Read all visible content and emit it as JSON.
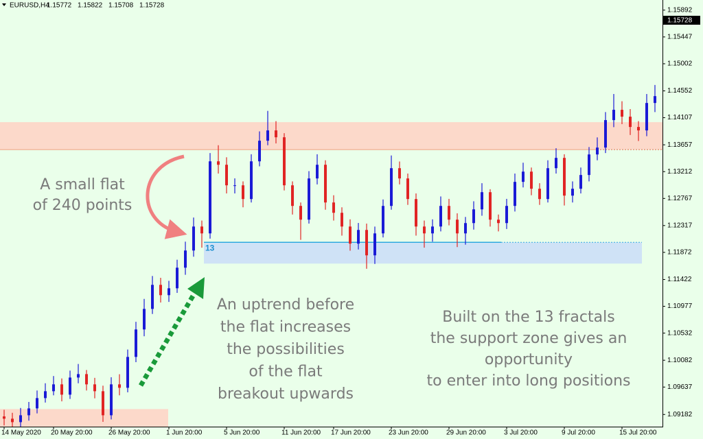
{
  "header": {
    "symbol": "EURUSD,H4",
    "ohlc": [
      1.15772,
      1.15822,
      1.15708,
      1.15728
    ]
  },
  "chart_data": {
    "type": "candlestick",
    "categories": [
      "14 May 2020",
      null,
      null,
      null,
      null,
      null,
      "20 May 20:00",
      null,
      null,
      null,
      null,
      null,
      null,
      "26 May 20:00",
      null,
      null,
      null,
      null,
      null,
      null,
      "1 Jun 20:00",
      null,
      null,
      null,
      null,
      null,
      null,
      "5 Jun 20:00",
      null,
      null,
      null,
      null,
      null,
      null,
      "11 Jun 20:00",
      null,
      null,
      null,
      null,
      null,
      "17 Jun 20:00",
      null,
      null,
      null,
      null,
      null,
      null,
      "23 Jun 20:00",
      null,
      null,
      null,
      null,
      null,
      null,
      "29 Jun 20:00",
      null,
      null,
      null,
      null,
      null,
      null,
      "3 Jul 20:00",
      null,
      null,
      null,
      null,
      null,
      null,
      "9 Jul 20:00",
      null,
      null,
      null,
      null,
      null,
      null,
      "15 Jul 20:00",
      null,
      null,
      null,
      null
    ],
    "open": [
      1.0915,
      1.09112,
      1.09055,
      1.09169,
      1.09283,
      1.09454,
      1.09568,
      1.09682,
      1.09511,
      1.09795,
      1.09852,
      1.09682,
      1.09568,
      1.09169,
      1.09682,
      1.09625,
      1.10137,
      1.10593,
      1.10934,
      1.11333,
      1.11162,
      1.11276,
      1.11618,
      1.11903,
      1.12301,
      1.12187,
      1.13383,
      1.13326,
      1.12985,
      1.12985,
      1.12757,
      1.13383,
      1.13725,
      1.13896,
      1.13782,
      1.12985,
      1.12643,
      1.12415,
      1.13099,
      1.13326,
      1.127,
      1.12529,
      1.12301,
      1.12017,
      1.12244,
      1.11823,
      1.12187,
      1.12643,
      1.13269,
      1.13099,
      1.12757,
      1.12301,
      1.12187,
      1.12301,
      1.12643,
      1.12415,
      1.12187,
      1.12358,
      1.12586,
      1.12871,
      1.12415,
      1.12358,
      1.12643,
      1.13042,
      1.13212,
      1.12928,
      1.12757,
      1.13269,
      1.1344,
      1.12814,
      1.12928,
      1.13156,
      1.13497,
      1.13611,
      1.14067,
      1.14238,
      1.14124,
      1.13953,
      1.13896,
      1.14351
    ],
    "high": [
      1.0926,
      1.0921,
      1.0929,
      1.0939,
      1.0958,
      1.097,
      1.0982,
      1.0978,
      1.0991,
      1.1002,
      1.0992,
      1.0979,
      1.0966,
      1.098,
      1.0985,
      1.1026,
      1.1072,
      1.111,
      1.1148,
      1.1145,
      1.114,
      1.1175,
      1.1205,
      1.1245,
      1.124,
      1.1352,
      1.1365,
      1.1345,
      1.131,
      1.1305,
      1.135,
      1.1388,
      1.1422,
      1.1405,
      1.1385,
      1.1305,
      1.127,
      1.1322,
      1.135,
      1.134,
      1.1282,
      1.1262,
      1.1242,
      1.1236,
      1.1235,
      1.123,
      1.1275,
      1.1348,
      1.1338,
      1.1318,
      1.1285,
      1.124,
      1.1242,
      1.128,
      1.1276,
      1.1252,
      1.1246,
      1.1272,
      1.1302,
      1.1292,
      1.125,
      1.1276,
      1.1318,
      1.1336,
      1.1328,
      1.1302,
      1.134,
      1.136,
      1.135,
      1.1305,
      1.1328,
      1.1362,
      1.1378,
      1.142,
      1.145,
      1.1438,
      1.1425,
      1.1405,
      1.145,
      1.1465
    ],
    "low": [
      1.09,
      1.0896,
      1.0898,
      1.0908,
      1.092,
      1.0938,
      1.095,
      1.094,
      1.0944,
      1.097,
      1.0958,
      1.0945,
      1.0906,
      1.091,
      1.095,
      1.0955,
      1.1005,
      1.1048,
      1.1085,
      1.1104,
      1.1105,
      1.112,
      1.115,
      1.118,
      1.1195,
      1.121,
      1.1318,
      1.1285,
      1.1285,
      1.1262,
      1.127,
      1.133,
      1.1365,
      1.1368,
      1.129,
      1.125,
      1.1208,
      1.1235,
      1.13,
      1.1258,
      1.124,
      1.1215,
      1.119,
      1.1192,
      1.116,
      1.1168,
      1.1212,
      1.1258,
      1.13,
      1.1266,
      1.1215,
      1.1195,
      1.1205,
      1.1222,
      1.1232,
      1.1196,
      1.12,
      1.1225,
      1.1248,
      1.123,
      1.1222,
      1.1226,
      1.1255,
      1.1295,
      1.1282,
      1.1266,
      1.127,
      1.1318,
      1.1265,
      1.127,
      1.1285,
      1.1305,
      1.134,
      1.1352,
      1.1395,
      1.14,
      1.1382,
      1.1372,
      1.138,
      1.142
    ],
    "close": [
      1.09112,
      1.09055,
      1.09169,
      1.09283,
      1.09454,
      1.09568,
      1.09682,
      1.09511,
      1.09795,
      1.09852,
      1.09682,
      1.09568,
      1.09169,
      1.09682,
      1.09625,
      1.10137,
      1.10593,
      1.10934,
      1.11333,
      1.11162,
      1.11276,
      1.11618,
      1.11903,
      1.12301,
      1.12187,
      1.13383,
      1.13326,
      1.12985,
      1.12985,
      1.12757,
      1.13383,
      1.13725,
      1.13896,
      1.13782,
      1.12985,
      1.12643,
      1.12415,
      1.13099,
      1.13326,
      1.127,
      1.12529,
      1.12301,
      1.12017,
      1.12244,
      1.11823,
      1.12187,
      1.12643,
      1.13269,
      1.13099,
      1.12757,
      1.12301,
      1.12187,
      1.12301,
      1.12643,
      1.12415,
      1.12187,
      1.12358,
      1.12586,
      1.12871,
      1.12415,
      1.12358,
      1.12643,
      1.13042,
      1.13212,
      1.12928,
      1.12757,
      1.13269,
      1.1344,
      1.12814,
      1.12928,
      1.13156,
      1.13497,
      1.13611,
      1.14067,
      1.14238,
      1.14124,
      1.13953,
      1.13896,
      1.14351,
      1.14465
    ],
    "up_color": "#1a1ad6",
    "down_color": "#e02424",
    "ylim": [
      1.0898,
      1.1606
    ],
    "yticks": [
      1.15892,
      1.15447,
      1.15002,
      1.14552,
      1.14107,
      1.13657,
      1.13212,
      1.12767,
      1.12317,
      1.11872,
      1.11422,
      1.10977,
      1.10532,
      1.10082,
      1.09637,
      1.09182
    ],
    "grid": false,
    "zones": [
      {
        "from": 1.13577,
        "to": 1.14033,
        "color": "#fcd9ca"
      },
      {
        "from": 1.11686,
        "to": 1.12039,
        "color": "#cfe2f6"
      },
      {
        "from": 1.0898,
        "to": 1.09272,
        "color": "#fcd9ca"
      }
    ],
    "zone_label": "13",
    "annotations": [
      [
        "A small flat",
        "of 240 points"
      ],
      [
        "An uptrend before",
        "the flat increases",
        "the possibilities",
        "of the flat",
        "breakout upwards"
      ],
      [
        "Built on the 13 fractals",
        "the support zone gives an",
        "opportunity",
        "to enter into long positions"
      ]
    ]
  }
}
